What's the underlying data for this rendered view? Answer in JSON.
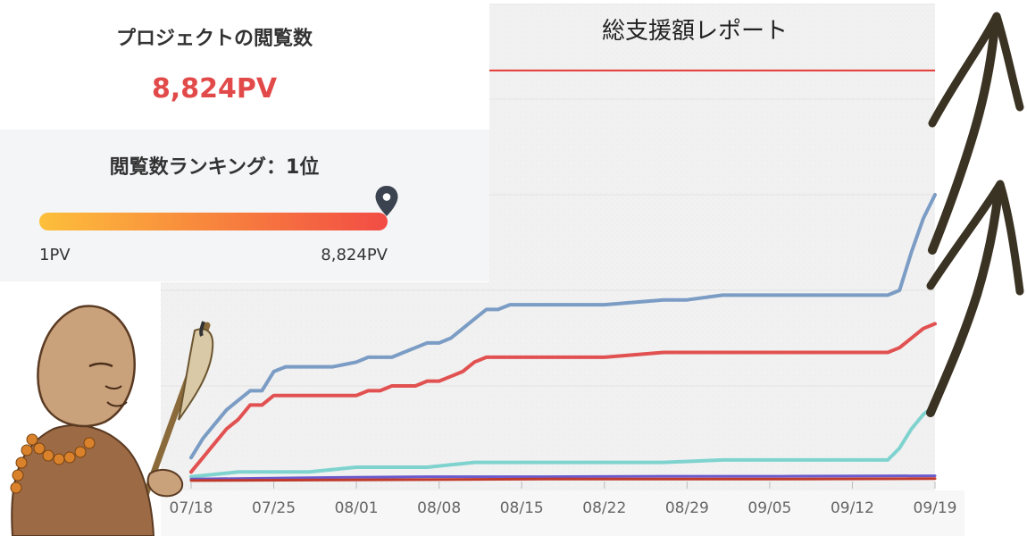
{
  "stats": {
    "title": "プロジェクトの閲覧数",
    "value": "8,824PV"
  },
  "ranking": {
    "title": "閲覧数ランキング：1位",
    "min_label": "1PV",
    "max_label": "8,824PV",
    "position_fraction": 1.0
  },
  "chart_data": {
    "type": "line",
    "title": "総支援額レポート",
    "xlabel": "",
    "ylabel": "",
    "grid": true,
    "legend": "none",
    "x_ticks": [
      "07/18",
      "07/25",
      "08/01",
      "08/08",
      "08/15",
      "08/22",
      "08/29",
      "09/05",
      "09/12",
      "09/19"
    ],
    "x_days": [
      0,
      7,
      14,
      21,
      28,
      35,
      42,
      49,
      56,
      63
    ],
    "ylim": [
      0,
      100
    ],
    "target_line": {
      "value": 86,
      "color": "#e53935"
    },
    "series": [
      {
        "color": "#7b9cc4",
        "points": [
          [
            0,
            5
          ],
          [
            1,
            9
          ],
          [
            2,
            12
          ],
          [
            3,
            15
          ],
          [
            4,
            17
          ],
          [
            5,
            19
          ],
          [
            6,
            19
          ],
          [
            7,
            23
          ],
          [
            8,
            24
          ],
          [
            9,
            24
          ],
          [
            10,
            24
          ],
          [
            11,
            24
          ],
          [
            12,
            24
          ],
          [
            14,
            25
          ],
          [
            15,
            26
          ],
          [
            16,
            26
          ],
          [
            17,
            26
          ],
          [
            18,
            27
          ],
          [
            19,
            28
          ],
          [
            20,
            29
          ],
          [
            21,
            29
          ],
          [
            22,
            30
          ],
          [
            23,
            32
          ],
          [
            24,
            34
          ],
          [
            25,
            36
          ],
          [
            26,
            36
          ],
          [
            27,
            37
          ],
          [
            28,
            37
          ],
          [
            30,
            37
          ],
          [
            35,
            37
          ],
          [
            40,
            38
          ],
          [
            42,
            38
          ],
          [
            45,
            39
          ],
          [
            50,
            39
          ],
          [
            55,
            39
          ],
          [
            59,
            39
          ],
          [
            60,
            40
          ],
          [
            61,
            48
          ],
          [
            62,
            55
          ],
          [
            63,
            60
          ]
        ]
      },
      {
        "color": "#e25151",
        "points": [
          [
            0,
            2
          ],
          [
            1,
            5
          ],
          [
            2,
            8
          ],
          [
            3,
            11
          ],
          [
            4,
            13
          ],
          [
            5,
            16
          ],
          [
            6,
            16
          ],
          [
            7,
            18
          ],
          [
            8,
            18
          ],
          [
            9,
            18
          ],
          [
            10,
            18
          ],
          [
            11,
            18
          ],
          [
            12,
            18
          ],
          [
            14,
            18
          ],
          [
            15,
            19
          ],
          [
            16,
            19
          ],
          [
            17,
            20
          ],
          [
            18,
            20
          ],
          [
            19,
            20
          ],
          [
            20,
            21
          ],
          [
            21,
            21
          ],
          [
            22,
            22
          ],
          [
            23,
            23
          ],
          [
            24,
            25
          ],
          [
            25,
            26
          ],
          [
            26,
            26
          ],
          [
            28,
            26
          ],
          [
            30,
            26
          ],
          [
            35,
            26
          ],
          [
            40,
            27
          ],
          [
            42,
            27
          ],
          [
            45,
            27
          ],
          [
            50,
            27
          ],
          [
            55,
            27
          ],
          [
            59,
            27
          ],
          [
            60,
            28
          ],
          [
            61,
            30
          ],
          [
            62,
            32
          ],
          [
            63,
            33
          ]
        ]
      },
      {
        "color": "#7fd3cf",
        "points": [
          [
            0,
            1
          ],
          [
            2,
            1.5
          ],
          [
            4,
            2
          ],
          [
            6,
            2
          ],
          [
            8,
            2
          ],
          [
            10,
            2
          ],
          [
            12,
            2.5
          ],
          [
            14,
            3
          ],
          [
            16,
            3
          ],
          [
            18,
            3
          ],
          [
            20,
            3
          ],
          [
            22,
            3.5
          ],
          [
            24,
            4
          ],
          [
            26,
            4
          ],
          [
            28,
            4
          ],
          [
            30,
            4
          ],
          [
            35,
            4
          ],
          [
            40,
            4
          ],
          [
            45,
            4.5
          ],
          [
            50,
            4.5
          ],
          [
            55,
            4.5
          ],
          [
            59,
            4.5
          ],
          [
            60,
            7
          ],
          [
            61,
            11
          ],
          [
            62,
            14
          ],
          [
            63,
            16
          ]
        ]
      },
      {
        "color": "#6a5acd",
        "points": [
          [
            0,
            0.5
          ],
          [
            10,
            0.8
          ],
          [
            20,
            1
          ],
          [
            30,
            1
          ],
          [
            40,
            1.1
          ],
          [
            50,
            1.1
          ],
          [
            63,
            1.2
          ]
        ]
      },
      {
        "color": "#c0392b",
        "points": [
          [
            0,
            0.2
          ],
          [
            10,
            0.3
          ],
          [
            20,
            0.4
          ],
          [
            30,
            0.5
          ],
          [
            40,
            0.5
          ],
          [
            50,
            0.5
          ],
          [
            63,
            0.6
          ]
        ]
      }
    ]
  },
  "decorations": {
    "character": "monk-with-brush",
    "arrows": "hand-drawn-up-arrows"
  }
}
